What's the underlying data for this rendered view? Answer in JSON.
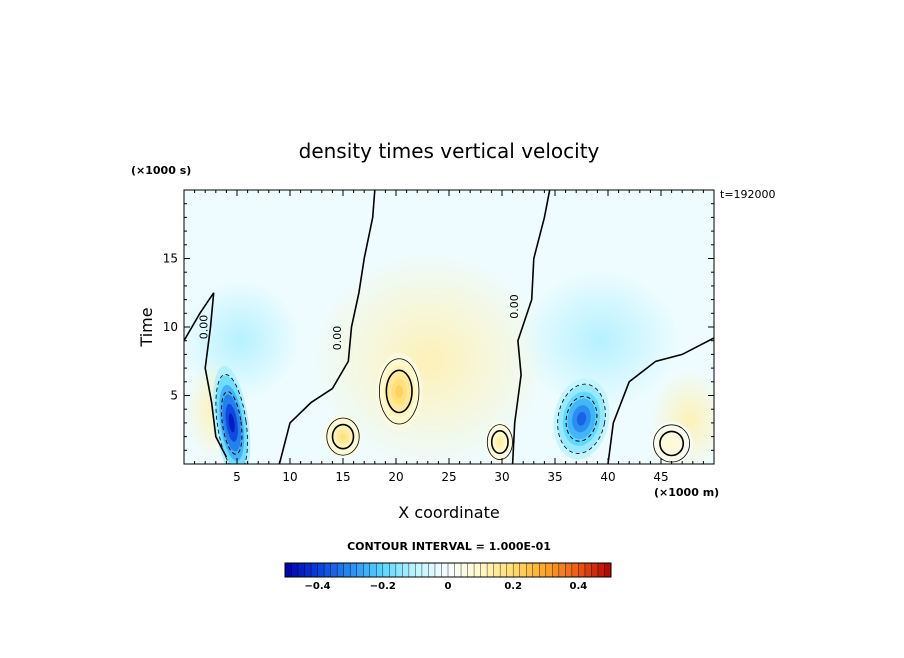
{
  "chart_data": {
    "type": "heatmap",
    "title": "density times vertical velocity",
    "xlabel": "X coordinate",
    "ylabel": "Time",
    "x_unit_label": "(×1000 m)",
    "y_unit_label": "(×1000 s)",
    "xlim": [
      0,
      50
    ],
    "ylim": [
      0,
      20
    ],
    "xticks": [
      5,
      10,
      15,
      20,
      25,
      30,
      35,
      40,
      45
    ],
    "yticks": [
      5,
      10,
      15
    ],
    "time_stamp": "t=192000",
    "contour_interval_label": "CONTOUR INTERVAL = 1.000E-01",
    "contour_labels": [
      "0.00",
      "0.00",
      "0.00"
    ],
    "colorbar": {
      "min": -0.5,
      "max": 0.5,
      "ticks": [
        -0.4,
        -0.2,
        0,
        0.2,
        0.4
      ],
      "tick_labels": [
        "−0.4",
        "−0.2",
        "0",
        "0.2",
        "0.4"
      ]
    },
    "features": [
      {
        "x": 4.5,
        "y": 3.0,
        "value": -0.45
      },
      {
        "x": 37.5,
        "y": 3.3,
        "value": -0.35
      },
      {
        "x": 20.3,
        "y": 5.3,
        "value": 0.22
      },
      {
        "x": 15.0,
        "y": 2.0,
        "value": 0.18
      },
      {
        "x": 29.8,
        "y": 1.6,
        "value": 0.14
      },
      {
        "x": 46.0,
        "y": 1.5,
        "value": 0.08
      }
    ]
  }
}
